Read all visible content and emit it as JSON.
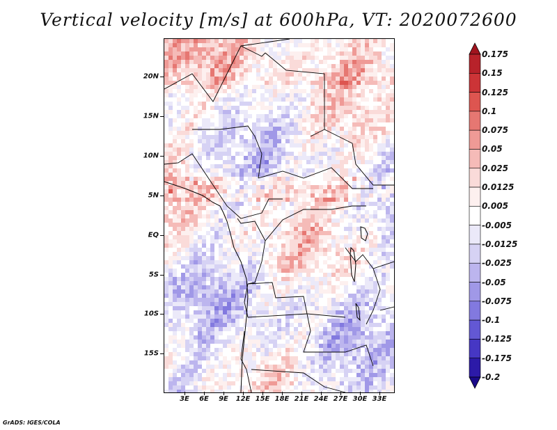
{
  "title": "Vertical velocity [m/s] at 600hPa, VT: 2020072600",
  "footer": "GrADS: IGES/COLA",
  "map": {
    "y_ticks": [
      "20N",
      "15N",
      "10N",
      "5N",
      "EQ",
      "5S",
      "10S",
      "15S"
    ],
    "x_ticks": [
      "3E",
      "6E",
      "9E",
      "12E",
      "15E",
      "18E",
      "21E",
      "24E",
      "27E",
      "30E",
      "33E"
    ]
  },
  "colorbar": {
    "labels": [
      "0.175",
      "0.15",
      "0.125",
      "0.1",
      "0.075",
      "0.05",
      "0.025",
      "0.0125",
      "0.005",
      "-0.005",
      "-0.0125",
      "-0.025",
      "-0.05",
      "-0.075",
      "-0.1",
      "-0.125",
      "-0.175",
      "-0.2"
    ],
    "colors": [
      "#a0141e",
      "#b8222a",
      "#cc3437",
      "#dd5550",
      "#e67772",
      "#ef9a96",
      "#f5bbb8",
      "#fadbd9",
      "#fdf0ef",
      "#ffffff",
      "#ebe9f9",
      "#d6d2f4",
      "#bcb5ee",
      "#a098e7",
      "#8279df",
      "#6358d4",
      "#4637c4",
      "#2c1aa8",
      "#1a0a8a"
    ]
  }
}
